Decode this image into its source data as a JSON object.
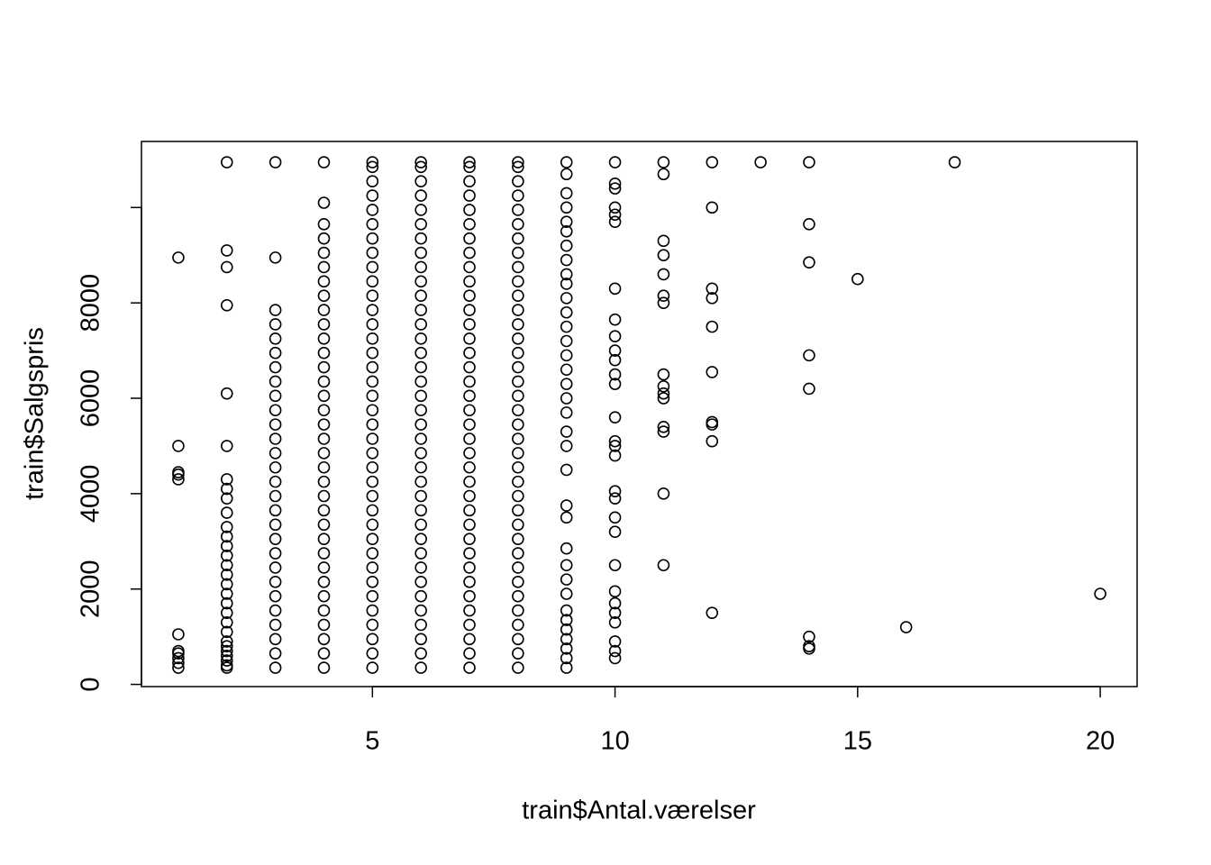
{
  "chart_data": {
    "type": "scatter",
    "xlabel": "train$Antal.værelser",
    "ylabel": "train$Salgspris",
    "xlim": [
      0.24,
      20.76
    ],
    "ylim": [
      -46,
      11385
    ],
    "xticks": [
      5,
      10,
      15,
      20
    ],
    "yticks": [
      0,
      2000,
      4000,
      6000,
      8000,
      {
        "value": 10000,
        "label": null
      }
    ],
    "color": "#000000",
    "columns": [
      {
        "x": 1,
        "y": [
          350,
          450,
          550,
          650,
          700,
          1050,
          4300,
          4400,
          4450,
          5000,
          8950
        ]
      },
      {
        "x": 2,
        "y": [
          350,
          400,
          500,
          600,
          700,
          800,
          900,
          1100,
          1300,
          1500,
          1700,
          1900,
          2100,
          2300,
          2500,
          2700,
          2900,
          3100,
          3300,
          3600,
          3900,
          4100,
          4300,
          5000,
          6100,
          7950,
          8750,
          9100,
          10950
        ]
      },
      {
        "x": 3,
        "y": [
          350,
          650,
          950,
          1250,
          1550,
          1850,
          2150,
          2450,
          2750,
          3050,
          3350,
          3650,
          3950,
          4250,
          4550,
          4850,
          5150,
          5450,
          5750,
          6050,
          6350,
          6650,
          6950,
          7250,
          7550,
          7850,
          8950,
          10950
        ]
      },
      {
        "x": 4,
        "y": [
          350,
          650,
          950,
          1250,
          1550,
          1850,
          2150,
          2450,
          2750,
          3050,
          3350,
          3650,
          3950,
          4250,
          4550,
          4850,
          5150,
          5450,
          5750,
          6050,
          6350,
          6650,
          6950,
          7250,
          7550,
          7850,
          8150,
          8450,
          8750,
          9050,
          9350,
          9650,
          10100,
          10950
        ]
      },
      {
        "x": 5,
        "y": [
          350,
          650,
          950,
          1250,
          1550,
          1850,
          2150,
          2450,
          2750,
          3050,
          3350,
          3650,
          3950,
          4250,
          4550,
          4850,
          5150,
          5450,
          5750,
          6050,
          6350,
          6650,
          6950,
          7250,
          7550,
          7850,
          8150,
          8450,
          8750,
          9050,
          9350,
          9650,
          9950,
          10250,
          10550,
          10850,
          10950
        ]
      },
      {
        "x": 6,
        "y": [
          350,
          650,
          950,
          1250,
          1550,
          1850,
          2150,
          2450,
          2750,
          3050,
          3350,
          3650,
          3950,
          4250,
          4550,
          4850,
          5150,
          5450,
          5750,
          6050,
          6350,
          6650,
          6950,
          7250,
          7550,
          7850,
          8150,
          8450,
          8750,
          9050,
          9350,
          9650,
          9950,
          10250,
          10550,
          10850,
          10950
        ]
      },
      {
        "x": 7,
        "y": [
          350,
          650,
          950,
          1250,
          1550,
          1850,
          2150,
          2450,
          2750,
          3050,
          3350,
          3650,
          3950,
          4250,
          4550,
          4850,
          5150,
          5450,
          5750,
          6050,
          6350,
          6650,
          6950,
          7250,
          7550,
          7850,
          8150,
          8450,
          8750,
          9050,
          9350,
          9650,
          9950,
          10250,
          10550,
          10850,
          10950
        ]
      },
      {
        "x": 8,
        "y": [
          350,
          650,
          950,
          1250,
          1550,
          1850,
          2150,
          2450,
          2750,
          3050,
          3350,
          3650,
          3950,
          4250,
          4550,
          4850,
          5150,
          5450,
          5750,
          6050,
          6350,
          6650,
          6950,
          7250,
          7550,
          7850,
          8150,
          8450,
          8750,
          9050,
          9350,
          9650,
          9950,
          10250,
          10550,
          10850,
          10950
        ]
      },
      {
        "x": 9,
        "y": [
          350,
          550,
          750,
          950,
          1150,
          1350,
          1550,
          1900,
          2200,
          2500,
          2850,
          3500,
          3750,
          4500,
          5000,
          5300,
          5700,
          6000,
          6300,
          6600,
          6900,
          7200,
          7500,
          7800,
          8100,
          8400,
          8600,
          8900,
          9200,
          9500,
          9700,
          10000,
          10300,
          10700,
          10950
        ]
      },
      {
        "x": 10,
        "y": [
          550,
          700,
          900,
          1300,
          1500,
          1700,
          1950,
          2500,
          3200,
          3500,
          3900,
          4050,
          4800,
          5000,
          5100,
          5600,
          6300,
          6500,
          6800,
          7000,
          7300,
          7650,
          8300,
          9700,
          9850,
          10000,
          10400,
          10500,
          10950
        ]
      },
      {
        "x": 11,
        "y": [
          2500,
          4000,
          5300,
          5400,
          6000,
          6100,
          6250,
          6500,
          8000,
          8150,
          8600,
          9000,
          9300,
          10700,
          10950
        ]
      },
      {
        "x": 12,
        "y": [
          1500,
          5100,
          5450,
          5500,
          6550,
          7500,
          8100,
          8300,
          10000,
          10950
        ]
      },
      {
        "x": 13,
        "y": [
          10950
        ]
      },
      {
        "x": 14,
        "y": [
          750,
          800,
          1000,
          6200,
          6900,
          8850,
          9650,
          10950
        ]
      },
      {
        "x": 15,
        "y": [
          8500
        ]
      },
      {
        "x": 16,
        "y": [
          1200
        ]
      },
      {
        "x": 17,
        "y": [
          10950
        ]
      },
      {
        "x": 20,
        "y": [
          1900
        ]
      }
    ]
  }
}
